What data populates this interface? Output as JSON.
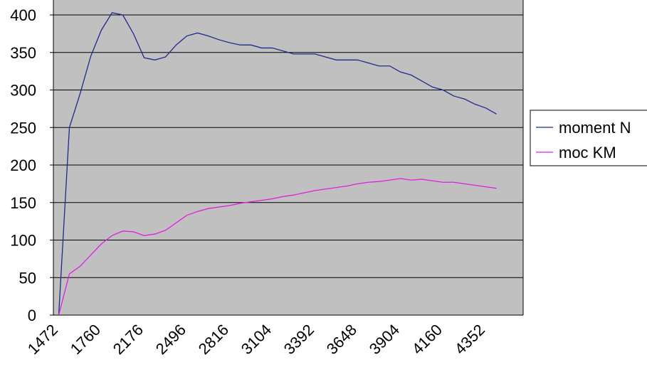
{
  "chart_data": {
    "type": "line",
    "categories": [
      "1472",
      null,
      null,
      null,
      "1760",
      null,
      null,
      null,
      "2176",
      null,
      null,
      null,
      "2496",
      null,
      null,
      null,
      "2816",
      null,
      null,
      null,
      "3104",
      null,
      null,
      null,
      "3392",
      null,
      null,
      null,
      "3648",
      null,
      null,
      null,
      "3904",
      null,
      null,
      null,
      "4160",
      null,
      null,
      null,
      "4352",
      null,
      null,
      null
    ],
    "series": [
      {
        "name": "moment N",
        "color": "#1f2a8c",
        "values": [
          0,
          250,
          295,
          345,
          380,
          403,
          400,
          375,
          343,
          340,
          344,
          360,
          372,
          376,
          372,
          367,
          363,
          360,
          360,
          356,
          356,
          352,
          348,
          348,
          348,
          344,
          340,
          340,
          340,
          336,
          332,
          332,
          324,
          320,
          312,
          304,
          300,
          292,
          288,
          281,
          276,
          268,
          null,
          null
        ]
      },
      {
        "name": "moc KM",
        "color": "#e020e0",
        "values": [
          0,
          55,
          65,
          80,
          95,
          106,
          112,
          111,
          106,
          108,
          113,
          123,
          133,
          138,
          142,
          144,
          146,
          149,
          151,
          153,
          155,
          158,
          160,
          163,
          166,
          168,
          170,
          172,
          175,
          177,
          178,
          180,
          182,
          180,
          181,
          179,
          177,
          177,
          175,
          173,
          171,
          169,
          null,
          null
        ]
      }
    ],
    "ylim": [
      0,
      400
    ],
    "yticks": [
      0,
      50,
      100,
      150,
      200,
      250,
      300,
      350,
      400
    ],
    "grid": true,
    "legend": "right",
    "plot_background": "#c0c0c0"
  }
}
